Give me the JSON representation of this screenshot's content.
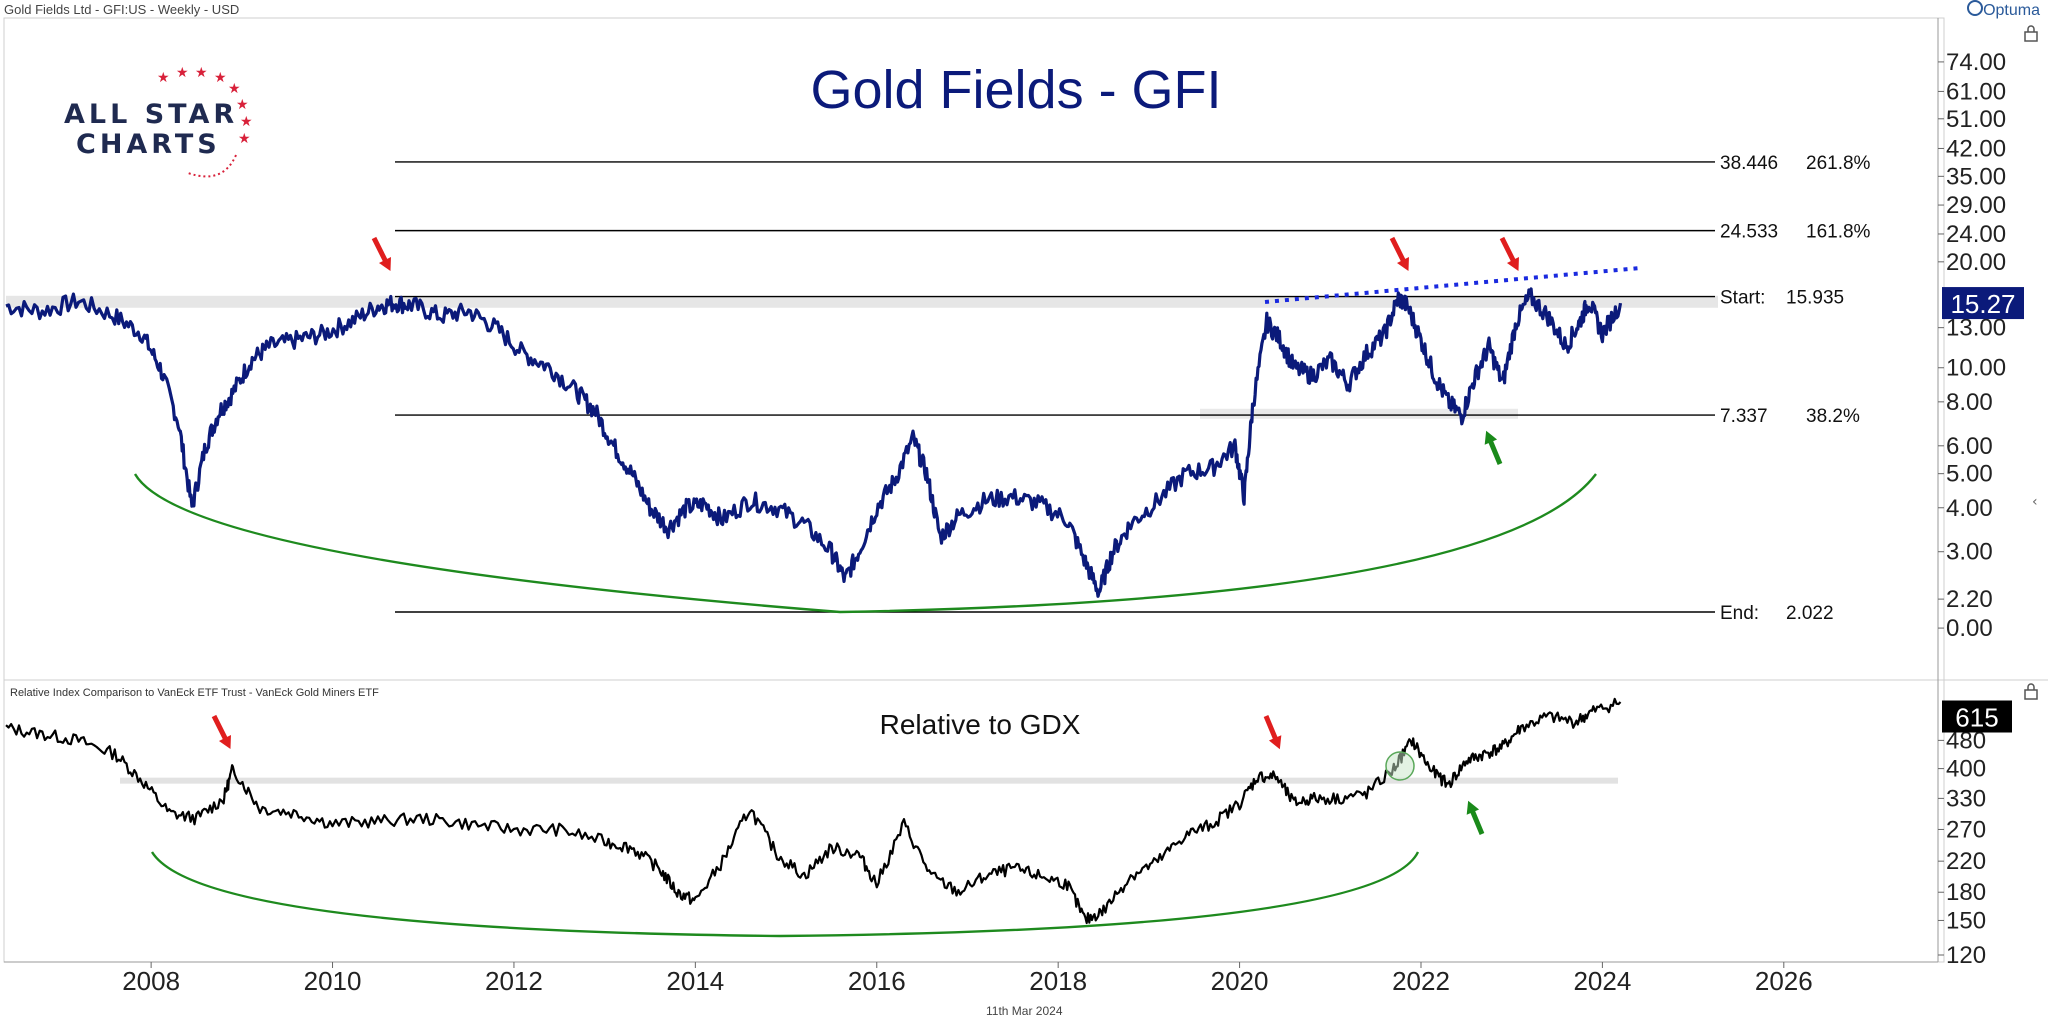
{
  "header": {
    "instrument": "Gold Fields Ltd - GFI:US - Weekly - USD",
    "brand": "Optuma",
    "footer_date": "11th Mar 2024"
  },
  "logo": {
    "line1": "ALL STAR",
    "line2": "CHARTS"
  },
  "colors": {
    "price": "#0b1a7a",
    "relative": "#000000",
    "arc": "#1e8a1e",
    "arrow_red": "#e01e1e",
    "arrow_green": "#1a8a1a",
    "trend": "#1a2adf",
    "fib": "#000000",
    "badge_price": "#0b1a7a",
    "badge_relative": "#000000"
  },
  "chart_data": [
    {
      "type": "line",
      "title": "Gold Fields - GFI",
      "y_scale": "log",
      "ytick_labels": [
        "74.00",
        "61.00",
        "51.00",
        "42.00",
        "35.00",
        "29.00",
        "24.00",
        "20.00",
        "15.27",
        "13.00",
        "10.00",
        "8.00",
        "6.00",
        "5.00",
        "4.00",
        "3.00",
        "2.20",
        "0.00"
      ],
      "last_value": "15.27",
      "x_range": [
        2006.4,
        2027.7
      ],
      "series": [
        {
          "x": [
            2006.4,
            2006.8,
            2007.2,
            2007.6,
            2007.9,
            2008.1,
            2008.3,
            2008.45,
            2008.6,
            2008.75,
            2008.9,
            2009.1,
            2009.3,
            2009.6,
            2009.9,
            2010.2,
            2010.5,
            2010.7,
            2010.9,
            2011.2,
            2011.5,
            2011.8,
            2012.1,
            2012.4,
            2012.7,
            2012.9,
            2013.1,
            2013.3,
            2013.5,
            2013.7,
            2013.9,
            2014.1,
            2014.3,
            2014.6,
            2014.9,
            2015.2,
            2015.5,
            2015.65,
            2015.8,
            2016.0,
            2016.2,
            2016.4,
            2016.55,
            2016.7,
            2016.9,
            2017.2,
            2017.5,
            2017.8,
            2018.1,
            2018.3,
            2018.45,
            2018.6,
            2018.8,
            2019.1,
            2019.4,
            2019.7,
            2019.95,
            2020.05,
            2020.15,
            2020.3,
            2020.45,
            2020.6,
            2020.8,
            2021.0,
            2021.2,
            2021.4,
            2021.6,
            2021.75,
            2021.85,
            2022.0,
            2022.15,
            2022.3,
            2022.45,
            2022.6,
            2022.75,
            2022.9,
            2023.05,
            2023.2,
            2023.4,
            2023.6,
            2023.75,
            2023.85,
            2024.0,
            2024.2
          ],
          "values": [
            15.0,
            14.5,
            15.5,
            14.0,
            12.5,
            10.0,
            7.0,
            4.0,
            6.0,
            7.5,
            8.5,
            10.5,
            11.5,
            12.0,
            12.5,
            13.5,
            15.0,
            15.3,
            15.0,
            14.0,
            14.5,
            13.0,
            11.0,
            10.0,
            8.5,
            7.5,
            6.0,
            5.0,
            4.0,
            3.5,
            4.0,
            4.1,
            3.7,
            4.2,
            4.0,
            3.6,
            3.0,
            2.5,
            3.0,
            4.0,
            4.8,
            6.3,
            5.0,
            3.3,
            3.8,
            4.2,
            4.3,
            4.1,
            3.7,
            2.8,
            2.3,
            3.0,
            3.6,
            4.2,
            5.0,
            5.2,
            6.0,
            4.3,
            8.0,
            13.5,
            12.0,
            10.0,
            9.5,
            10.5,
            9.0,
            11.0,
            12.5,
            15.8,
            15.0,
            12.0,
            9.5,
            8.0,
            7.3,
            9.5,
            11.5,
            9.0,
            13.5,
            16.0,
            14.0,
            11.5,
            13.5,
            15.5,
            12.5,
            15.27
          ]
        }
      ],
      "levels": [
        {
          "value": 38.446,
          "label": "38.446",
          "pct": "261.8%"
        },
        {
          "value": 24.533,
          "label": "24.533",
          "pct": "161.8%"
        },
        {
          "value": 15.935,
          "label": "15.935",
          "prefix": "Start:"
        },
        {
          "value": 7.337,
          "label": "7.337",
          "pct": "38.2%"
        },
        {
          "value": 2.022,
          "label": "2.022",
          "prefix": "End:"
        }
      ]
    },
    {
      "type": "line",
      "title": "Relative to GDX",
      "subtitle": "Relative Index Comparison to VanEck ETF Trust - VanEck Gold Miners ETF",
      "y_scale": "log",
      "ytick_labels": [
        "480",
        "400",
        "330",
        "270",
        "220",
        "180",
        "150",
        "120"
      ],
      "last_value": "615",
      "x_range": [
        2006.4,
        2027.7
      ],
      "series": [
        {
          "x": [
            2006.4,
            2006.8,
            2007.2,
            2007.6,
            2007.9,
            2008.2,
            2008.5,
            2008.8,
            2008.9,
            2009.2,
            2009.6,
            2010.0,
            2010.5,
            2011.0,
            2011.5,
            2012.0,
            2012.5,
            2013.0,
            2013.3,
            2013.6,
            2013.8,
            2014.0,
            2014.3,
            2014.6,
            2014.9,
            2015.2,
            2015.5,
            2015.8,
            2016.0,
            2016.3,
            2016.6,
            2016.9,
            2017.2,
            2017.5,
            2017.8,
            2018.1,
            2018.3,
            2018.5,
            2018.8,
            2019.1,
            2019.4,
            2019.7,
            2020.0,
            2020.2,
            2020.4,
            2020.6,
            2020.8,
            2021.1,
            2021.4,
            2021.7,
            2021.9,
            2022.1,
            2022.3,
            2022.5,
            2022.7,
            2022.9,
            2023.1,
            2023.4,
            2023.7,
            2023.9,
            2024.2
          ],
          "values": [
            520,
            500,
            480,
            440,
            370,
            300,
            290,
            330,
            400,
            310,
            300,
            280,
            285,
            290,
            280,
            270,
            270,
            250,
            240,
            210,
            180,
            170,
            220,
            310,
            230,
            200,
            240,
            230,
            190,
            280,
            200,
            180,
            200,
            210,
            200,
            190,
            150,
            160,
            200,
            220,
            260,
            280,
            320,
            380,
            380,
            320,
            330,
            330,
            340,
            400,
            480,
            400,
            360,
            420,
            440,
            460,
            520,
            560,
            540,
            580,
            615
          ]
        }
      ],
      "levels": [
        {
          "value": 370
        }
      ]
    }
  ],
  "x_axis_labels": [
    "2008",
    "2010",
    "2012",
    "2014",
    "2016",
    "2018",
    "2020",
    "2022",
    "2024",
    "2026"
  ]
}
